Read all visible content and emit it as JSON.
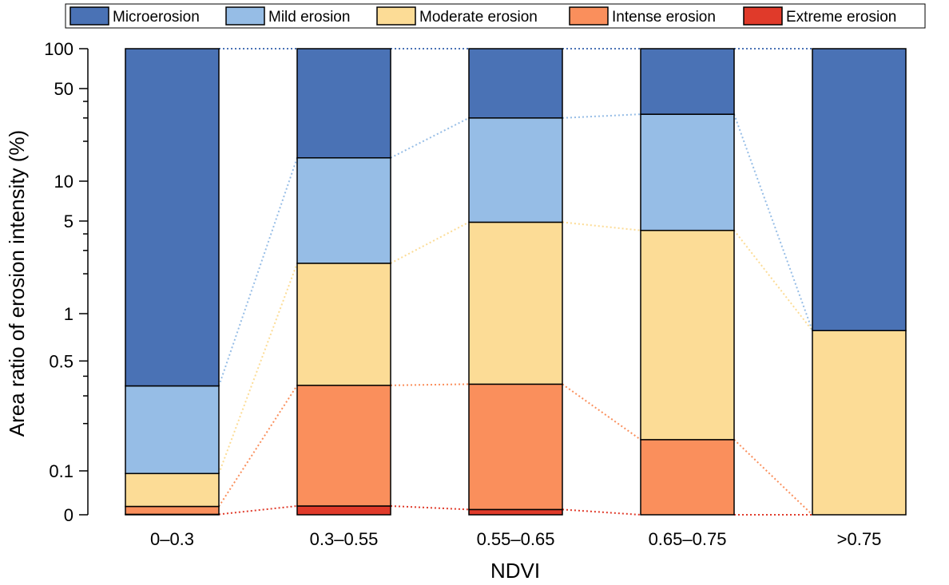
{
  "chart_data": {
    "type": "bar",
    "stacked": true,
    "normalized_percent": true,
    "title": "",
    "xlabel": "NDVI",
    "ylabel": "Area ratio of erosion intensity (%)",
    "y_scale": "piecewise-log",
    "ylim": [
      0,
      100
    ],
    "y_ticks": [
      {
        "value": 0,
        "label": "0"
      },
      {
        "value": 0.1,
        "label": "0.1"
      },
      {
        "value": 0.5,
        "label": "0.5"
      },
      {
        "value": 1,
        "label": "1"
      },
      {
        "value": 5,
        "label": "5"
      },
      {
        "value": 10,
        "label": "10"
      },
      {
        "value": 50,
        "label": "50"
      },
      {
        "value": 100,
        "label": "100"
      }
    ],
    "y_minor_ticks": [
      0.2,
      0.3,
      0.4,
      2,
      3,
      4,
      20,
      30,
      40
    ],
    "categories": [
      "0–0.3",
      "0.3–0.55",
      "0.55–0.65",
      "0.65–0.75",
      ">0.75"
    ],
    "series": [
      {
        "name": "Extreme erosion",
        "color": "#e03a2a",
        "values": [
          0.001,
          0.02,
          0.012,
          0,
          0
        ]
      },
      {
        "name": "Intense erosion",
        "color": "#fa8f5c",
        "values": [
          0.018,
          0.33,
          0.344,
          0.158,
          0
        ]
      },
      {
        "name": "Moderate erosion",
        "color": "#fcdc96",
        "values": [
          0.075,
          2.05,
          4.544,
          4.092,
          0.78
        ]
      },
      {
        "name": "Mild erosion",
        "color": "#96bde6",
        "values": [
          0.253,
          12.6,
          25.1,
          27.75,
          0
        ]
      },
      {
        "name": "Microerosion",
        "color": "#4a72b5",
        "values": [
          99.653,
          85.0,
          70.0,
          68.0,
          99.22
        ]
      }
    ],
    "legend_order": [
      "Microerosion",
      "Mild erosion",
      "Moderate erosion",
      "Intense erosion",
      "Extreme erosion"
    ],
    "legend_position": "top",
    "connector_lines": "dotted",
    "grid": false
  }
}
